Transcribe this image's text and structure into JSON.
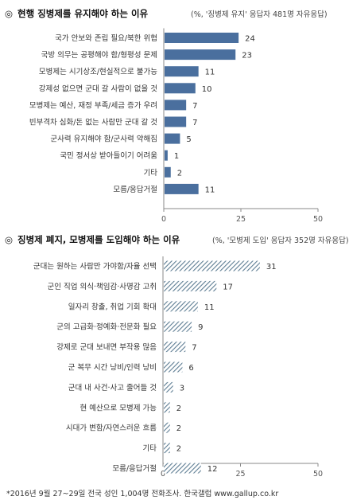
{
  "footnote": "*2016년 9월 27~29일 전국 성인 1,004명 전화조사. 한국갤럽 www.gallup.co.kr",
  "colors": {
    "solid_bar": "#4a6f9e",
    "hatch_bar": "#5e7d93",
    "axis": "#888888"
  },
  "chart_data": [
    {
      "type": "bar",
      "orientation": "horizontal",
      "bullet": "◎",
      "title": "현행 징병제를 유지해야 하는 이유",
      "subtitle": "(%, '징병제 유지' 응답자 481명 자유응답)",
      "categories": [
        "국가 안보와 존립 필요/북한 위협",
        "국방 의무는 공평해야 함/형평성 문제",
        "모병제는 시기상조/현실적으로 불가능",
        "강제성 없으면 군대 갈 사람이 없을 것",
        "모병제는 예산, 재정 부족/세금 증가 우려",
        "빈부격차 심화/돈 없는 사람만 군대 갈 것",
        "군사력 유지해야 함/군사력 약해짐",
        "국민 정서상 받아들이기 어려움",
        "기타",
        "모름/응답거절"
      ],
      "values": [
        24,
        23,
        11,
        10,
        7,
        7,
        5,
        1,
        2,
        11
      ],
      "xlim": [
        0,
        50
      ],
      "xticks": [
        "0",
        "25",
        "50"
      ],
      "bar_style": "solid"
    },
    {
      "type": "bar",
      "orientation": "horizontal",
      "bullet": "◎",
      "title": "징병제 폐지, 모병제를 도입해야 하는 이유",
      "subtitle": "(%, '모병제 도입' 응답자 352명 자유응답)",
      "categories": [
        "군대는 원하는 사람만 가야함/자율 선택",
        "군인 직업 의식·책임감·사명감 고취",
        "일자리 창출, 취업 기회 확대",
        "군의 고급화·정예화·전문화 필요",
        "강제로 군대 보내면 부작용 많음",
        "군 복무 시간 낭비/인력 낭비",
        "군대 내 사건·사고 줄어들 것",
        "현 예산으로 모병제 가능",
        "시대가 변함/자연스러운 흐름",
        "기타",
        "모름/응답거절"
      ],
      "values": [
        31,
        17,
        11,
        9,
        7,
        6,
        3,
        2,
        2,
        2,
        12
      ],
      "xlim": [
        0,
        50
      ],
      "xticks": [
        "0",
        "25",
        "50"
      ],
      "bar_style": "hatched"
    }
  ]
}
